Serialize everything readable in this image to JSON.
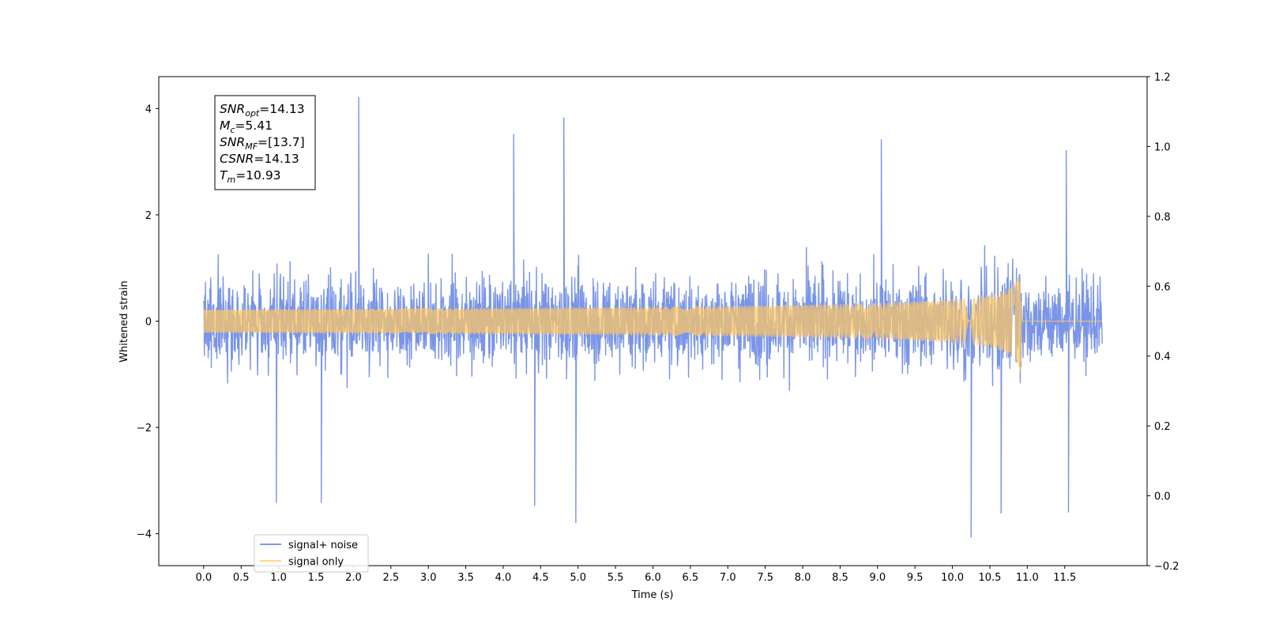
{
  "chart_data": {
    "type": "line",
    "xlabel": "Time (s)",
    "ylabel": "Whitened strain",
    "xlim": [
      -0.6,
      12.6
    ],
    "ylim": [
      -4.6,
      4.6
    ],
    "ylim_right": [
      -0.2,
      1.2
    ],
    "xticks": [
      "0.0",
      "0.5",
      "1.0",
      "1.5",
      "2.0",
      "2.5",
      "3.0",
      "3.5",
      "4.0",
      "4.5",
      "5.0",
      "5.5",
      "6.0",
      "6.5",
      "7.0",
      "7.5",
      "8.0",
      "8.5",
      "9.0",
      "9.5",
      "10.0",
      "10.5",
      "11.0",
      "11.5"
    ],
    "yticks_left": [
      "4",
      "2",
      "0",
      "−2",
      "−4"
    ],
    "yticks_left_values": [
      4,
      2,
      0,
      -2,
      -4
    ],
    "yticks_right": [
      "1.2",
      "1.0",
      "0.8",
      "0.6",
      "0.4",
      "0.2",
      "0.0",
      "−0.2"
    ],
    "yticks_right_values": [
      1.2,
      1.0,
      0.8,
      0.6,
      0.4,
      0.2,
      0.0,
      -0.2
    ],
    "series": [
      {
        "name": "signal+ noise",
        "color": "#5577e0",
        "duration": 12.0,
        "envelope_typical": 1.5,
        "peaks": [
          {
            "t": 2.07,
            "v": 4.22
          },
          {
            "t": 4.81,
            "v": 3.83
          },
          {
            "t": 4.14,
            "v": 3.52
          },
          {
            "t": 0.97,
            "v": -3.42
          },
          {
            "t": 1.57,
            "v": -3.42
          },
          {
            "t": 4.42,
            "v": -3.48
          },
          {
            "t": 4.97,
            "v": -3.8
          },
          {
            "t": 10.25,
            "v": -4.07
          },
          {
            "t": 10.65,
            "v": -3.62
          },
          {
            "t": 11.55,
            "v": -3.6
          },
          {
            "t": 11.52,
            "v": 3.22
          },
          {
            "t": 9.05,
            "v": 3.42
          }
        ]
      },
      {
        "name": "signal only",
        "color": "#ffc864",
        "merger_time": 10.93,
        "peak_amplitude": 1.22
      }
    ],
    "annotation": [
      {
        "main": "SNR",
        "sub": "opt",
        "rest": "=14.13"
      },
      {
        "main": "M",
        "sub": "c",
        "rest": "=5.41"
      },
      {
        "main": "SNR",
        "sub": "MF",
        "rest": "=[13.7]"
      },
      {
        "main": "CSNR",
        "sub": "",
        "rest": "=14.13"
      },
      {
        "main": "T",
        "sub": "m",
        "rest": "=10.93"
      }
    ],
    "legend_placement": "lower-left",
    "grid": false
  }
}
